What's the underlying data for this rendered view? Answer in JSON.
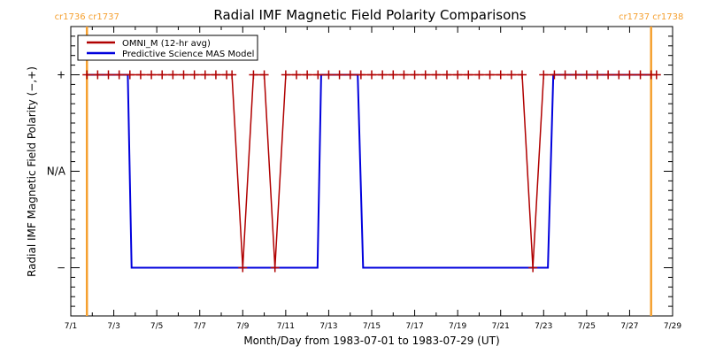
{
  "chart_data": {
    "type": "line",
    "title": "Radial IMF Magnetic Field Polarity Comparisons",
    "xlabel": "Month/Day from 1983-07-01 to 1983-07-29 (UT)",
    "ylabel": "Radial IMF Magnetic Field Polarity (−,+)",
    "x_unit": "days since 1983-07-01",
    "xlim": [
      0,
      28
    ],
    "ylim": [
      -1.5,
      1.5
    ],
    "x_ticks": [
      {
        "value": 0,
        "label": "7/1"
      },
      {
        "value": 2,
        "label": "7/3"
      },
      {
        "value": 4,
        "label": "7/5"
      },
      {
        "value": 6,
        "label": "7/7"
      },
      {
        "value": 8,
        "label": "7/9"
      },
      {
        "value": 10,
        "label": "7/11"
      },
      {
        "value": 12,
        "label": "7/13"
      },
      {
        "value": 14,
        "label": "7/15"
      },
      {
        "value": 16,
        "label": "7/17"
      },
      {
        "value": 18,
        "label": "7/19"
      },
      {
        "value": 20,
        "label": "7/21"
      },
      {
        "value": 22,
        "label": "7/23"
      },
      {
        "value": 24,
        "label": "7/25"
      },
      {
        "value": 26,
        "label": "7/27"
      },
      {
        "value": 28,
        "label": "7/29"
      }
    ],
    "y_ticks": [
      {
        "value": 1,
        "label": "+"
      },
      {
        "value": 0,
        "label": "N/A"
      },
      {
        "value": -1,
        "label": "−"
      }
    ],
    "carrington_markers": [
      {
        "x": 0.75,
        "label": "cr1736 cr1737"
      },
      {
        "x": 27.0,
        "label": "cr1737 cr1738"
      }
    ],
    "legend": {
      "placement": "top-left"
    },
    "series": [
      {
        "name": "OMNI_M (12-hr avg)",
        "color": "#b00000",
        "markers": true,
        "x": [
          0.75,
          1.25,
          1.75,
          2.25,
          2.75,
          3.25,
          3.75,
          4.25,
          4.75,
          5.25,
          5.75,
          6.25,
          6.75,
          7.25,
          7.5,
          8.0,
          8.5,
          9.0,
          9.5,
          10.0,
          10.5,
          11.0,
          11.5,
          12.0,
          12.5,
          13.0,
          13.5,
          14.0,
          14.5,
          15.0,
          15.5,
          16.0,
          16.5,
          17.0,
          17.5,
          18.0,
          18.5,
          19.0,
          19.5,
          20.0,
          20.5,
          21.0,
          21.5,
          22.0,
          22.5,
          23.0,
          23.5,
          24.0,
          24.5,
          25.0,
          25.5,
          26.0,
          26.5,
          27.0,
          27.25
        ],
        "y": [
          1,
          1,
          1,
          1,
          1,
          1,
          1,
          1,
          1,
          1,
          1,
          1,
          1,
          1,
          1,
          -1,
          1,
          1,
          -1,
          1,
          1,
          1,
          1,
          1,
          1,
          1,
          1,
          1,
          1,
          1,
          1,
          1,
          1,
          1,
          1,
          1,
          1,
          1,
          1,
          1,
          1,
          1,
          -1,
          1,
          1,
          1,
          1,
          1,
          1,
          1,
          1,
          1,
          1,
          1,
          1
        ]
      },
      {
        "name": "Predictive Science MAS Model",
        "color": "#0000dd",
        "markers": false,
        "x": [
          0.7,
          2.65,
          2.83,
          11.48,
          11.65,
          13.35,
          13.6,
          22.2,
          22.45,
          27.0
        ],
        "y": [
          1,
          1,
          -1,
          -1,
          1,
          1,
          -1,
          -1,
          1,
          1
        ]
      }
    ]
  }
}
